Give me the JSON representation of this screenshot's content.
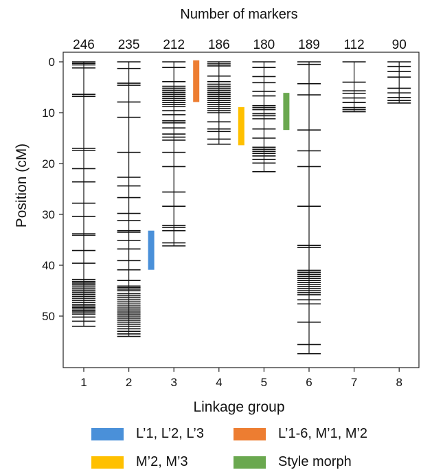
{
  "chart_data": {
    "type": "linkage-map",
    "title": "Number of markers",
    "xlabel": "Linkage group",
    "ylabel": "Position (cM)",
    "ylim": [
      0,
      60
    ],
    "yticks": [
      0,
      10,
      20,
      30,
      40,
      50
    ],
    "grid": false,
    "groups": [
      {
        "name": "1",
        "markers": 246,
        "positions": [
          0,
          0.3,
          0.6,
          1.2,
          6.4,
          6.8,
          17.0,
          17.4,
          21.0,
          23.6,
          27.8,
          30.4,
          33.8,
          34.1,
          37.1,
          39.6,
          42.8,
          43.2,
          43.5,
          43.8,
          44.1,
          44.5,
          44.9,
          45.3,
          45.7,
          46.1,
          46.5,
          46.9,
          47.3,
          47.7,
          48.0,
          48.3,
          48.6,
          48.9,
          49.2,
          49.6,
          50.2,
          51.0,
          52.0
        ]
      },
      {
        "name": "2",
        "markers": 235,
        "positions": [
          0,
          1.3,
          4.2,
          4.6,
          7.9,
          10.9,
          17.8,
          22.7,
          24.4,
          26.7,
          29.8,
          31.2,
          33.2,
          33.5,
          35.1,
          36.8,
          39.1,
          40.9,
          43.0,
          44.1,
          44.4,
          44.7,
          45.0,
          45.6,
          46.0,
          46.4,
          46.8,
          47.2,
          47.6,
          48.0,
          48.4,
          48.8,
          49.2,
          49.6,
          50.0,
          50.4,
          50.8,
          51.2,
          51.6,
          52.0,
          52.5,
          53.0,
          53.5,
          54.0
        ]
      },
      {
        "name": "3",
        "markers": 212,
        "positions": [
          0,
          1.1,
          3.9,
          4.8,
          5.2,
          5.6,
          6.0,
          6.4,
          6.8,
          7.2,
          7.6,
          8.0,
          8.4,
          8.8,
          9.6,
          10.4,
          11.6,
          12.0,
          13.0,
          14.2,
          14.8,
          15.4,
          17.8,
          20.6,
          25.6,
          28.4,
          32.2,
          32.6,
          33.2,
          35.6,
          36.2
        ]
      },
      {
        "name": "4",
        "markers": 186,
        "positions": [
          0,
          0.4,
          0.8,
          2.8,
          3.9,
          4.4,
          4.8,
          5.2,
          5.6,
          6.0,
          6.4,
          6.8,
          7.2,
          7.6,
          8.0,
          8.4,
          8.8,
          9.2,
          9.6,
          10.0,
          11.8,
          13.2,
          13.7,
          15.2,
          16.2
        ]
      },
      {
        "name": "5",
        "markers": 180,
        "positions": [
          0,
          1.1,
          2.9,
          4.1,
          5.8,
          6.7,
          8.6,
          9.0,
          9.4,
          10.2,
          10.6,
          11.2,
          13.2,
          15.0,
          16.8,
          17.2,
          17.6,
          18.0,
          18.5,
          19.2,
          19.9,
          21.6
        ]
      },
      {
        "name": "6",
        "markers": 189,
        "positions": [
          0,
          0.5,
          4.3,
          6.5,
          13.4,
          17.5,
          20.6,
          28.4,
          36.1,
          36.5,
          41.0,
          41.4,
          41.8,
          42.2,
          42.6,
          43.0,
          43.4,
          43.8,
          44.2,
          44.6,
          45.0,
          45.4,
          45.8,
          46.8,
          47.6,
          51.2,
          55.6,
          57.4
        ]
      },
      {
        "name": "7",
        "markers": 112,
        "positions": [
          0,
          4.0,
          5.7,
          6.2,
          7.1,
          8.0,
          9.0,
          9.4,
          9.8
        ]
      },
      {
        "name": "8",
        "markers": 90,
        "positions": [
          0,
          0.9,
          1.9,
          3.0,
          5.2,
          6.1,
          7.0,
          7.6,
          8.1
        ]
      }
    ],
    "intervals": [
      {
        "label": "L’1, L’2, L’3",
        "group": "2",
        "start": 33.2,
        "end": 40.9,
        "color": "#4a90d9"
      },
      {
        "label": "L’1-6, M’1, M’2",
        "group": "3",
        "start": -0.3,
        "end": 7.9,
        "color": "#ed7d31"
      },
      {
        "label": "M’2, M’3",
        "group": "4",
        "start": 8.9,
        "end": 16.4,
        "color": "#ffc000"
      },
      {
        "label": "Style morph",
        "group": "5",
        "start": 6.1,
        "end": 13.4,
        "color": "#6aa84f"
      }
    ],
    "legend": [
      {
        "label": "L’1, L’2, L’3",
        "color": "#4a90d9"
      },
      {
        "label": "L’1-6, M’1, M’2",
        "color": "#ed7d31"
      },
      {
        "label": "M’2, M’3",
        "color": "#ffc000"
      },
      {
        "label": "Style morph",
        "color": "#6aa84f"
      }
    ],
    "legend_position": "bottom"
  }
}
